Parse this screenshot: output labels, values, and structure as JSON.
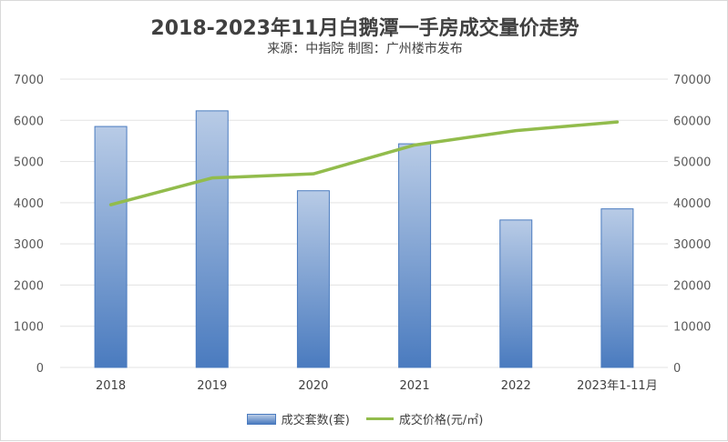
{
  "chart_data": {
    "type": "bar+line",
    "title": "2018-2023年11月白鹅潭一手房成交量价走势",
    "subtitle": "来源：中指院 制图：广州楼市发布",
    "categories": [
      "2018",
      "2019",
      "2020",
      "2021",
      "2022",
      "2023年1-11月"
    ],
    "series": [
      {
        "name": "成交套数(套)",
        "type": "bar",
        "axis": "left",
        "color": "#4a7bbf",
        "values": [
          5850,
          6230,
          4290,
          5430,
          3580,
          3850
        ]
      },
      {
        "name": "成交价格(元/㎡)",
        "type": "line",
        "axis": "right",
        "color": "#92bc4c",
        "values": [
          39500,
          46000,
          47000,
          54000,
          57500,
          59600
        ]
      }
    ],
    "y_left": {
      "min": 0,
      "max": 7000,
      "ticks": [
        "0",
        "1000",
        "2000",
        "3000",
        "4000",
        "5000",
        "6000",
        "7000"
      ]
    },
    "y_right": {
      "min": 0,
      "max": 70000,
      "ticks": [
        "0",
        "10000",
        "20000",
        "30000",
        "40000",
        "50000",
        "60000",
        "70000"
      ]
    },
    "grid": true,
    "legend": "bottom"
  }
}
